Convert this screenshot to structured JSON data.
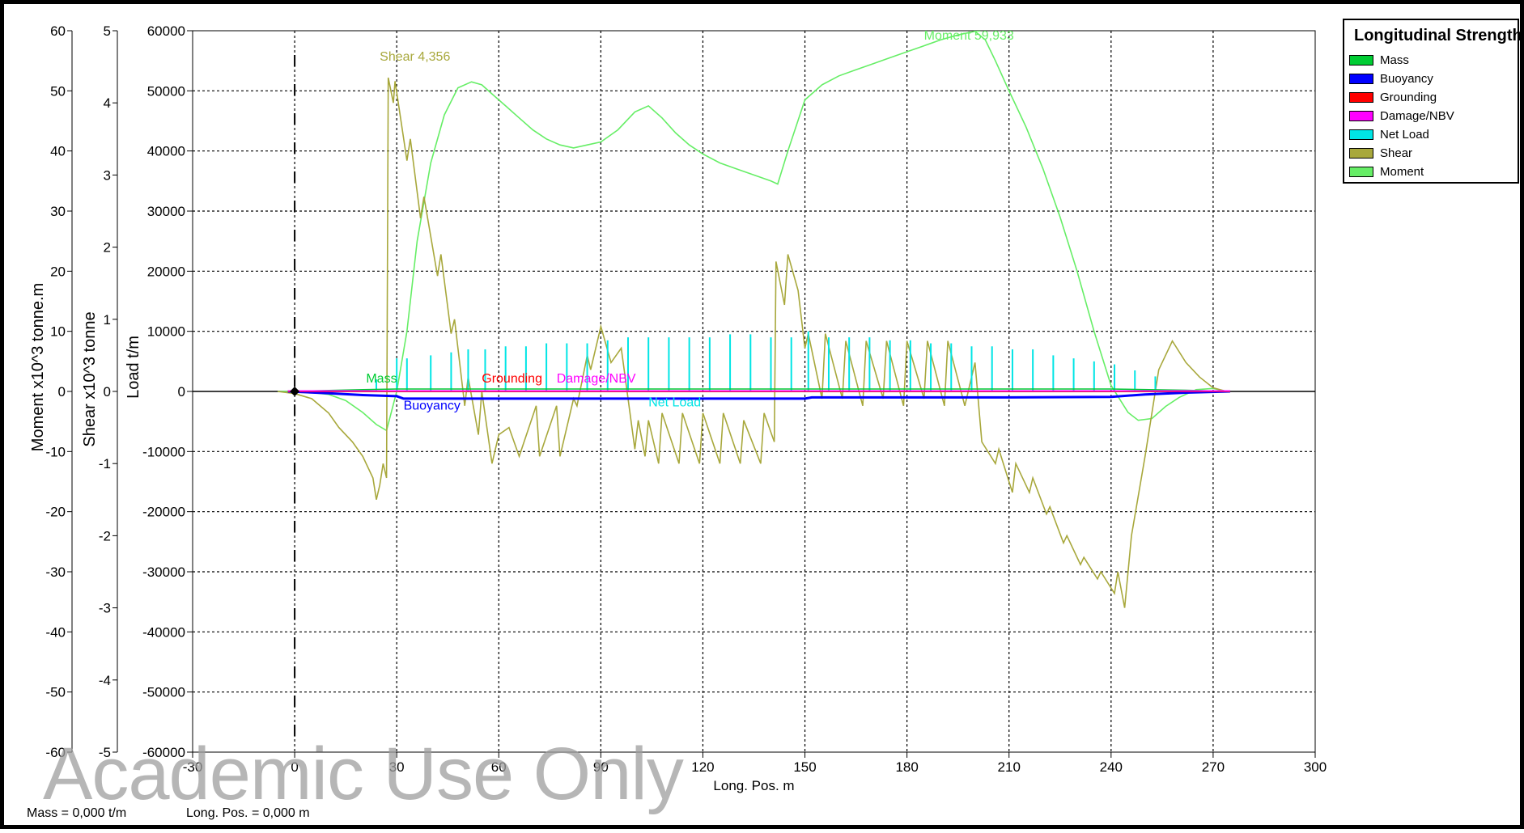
{
  "colors": {
    "mass": "#00cc33",
    "buoyancy": "#0000ff",
    "grounding": "#ff0000",
    "damage": "#ff00ff",
    "net_load": "#00e5e5",
    "shear": "#a8a83c",
    "moment": "#66ee66",
    "grid": "#000000"
  },
  "legend": {
    "title": "Longitudinal Strength",
    "items": [
      {
        "label": "Mass",
        "color": "#00cc33"
      },
      {
        "label": "Buoyancy",
        "color": "#0000ff"
      },
      {
        "label": "Grounding",
        "color": "#ff0000"
      },
      {
        "label": "Damage/NBV",
        "color": "#ff00ff"
      },
      {
        "label": "Net Load",
        "color": "#00e5e5"
      },
      {
        "label": "Shear",
        "color": "#a8a83c"
      },
      {
        "label": "Moment",
        "color": "#66ee66"
      }
    ]
  },
  "status": {
    "mass": "Mass =  0,000 t/m",
    "long_pos": "Long. Pos. =  0,000 m"
  },
  "watermark": "Academic Use Only",
  "chart_data": {
    "type": "line",
    "title": "",
    "xlabel": "Long. Pos.  m",
    "xlim": [
      -30,
      300
    ],
    "x_ticks": [
      "-30",
      "0",
      "30",
      "60",
      "90",
      "120",
      "150",
      "180",
      "210",
      "240",
      "270",
      "300"
    ],
    "y_axes": [
      {
        "label": "Load  t/m",
        "lim": [
          -60000,
          60000
        ],
        "ticks": [
          "60000",
          "50000",
          "40000",
          "30000",
          "20000",
          "10000",
          "0",
          "-10000",
          "-20000",
          "-30000",
          "-40000",
          "-50000",
          "-60000"
        ]
      },
      {
        "label": "Shear  x10^3 tonne",
        "lim": [
          -5,
          5
        ],
        "ticks": [
          "5",
          "4",
          "3",
          "2",
          "1",
          "0",
          "-1",
          "-2",
          "-3",
          "-4",
          "-5"
        ]
      },
      {
        "label": "Moment  x10^3 tonne.m",
        "lim": [
          -60,
          60
        ],
        "ticks": [
          "60",
          "50",
          "40",
          "30",
          "20",
          "10",
          "0",
          "-10",
          "-20",
          "-30",
          "-40",
          "-50",
          "-60"
        ]
      }
    ],
    "grid": true,
    "legend_position": "top-right",
    "annotations": [
      {
        "text": "Shear 4,356",
        "x": 25,
        "y": 55000,
        "color": "#a8a83c"
      },
      {
        "text": "Moment 59,933",
        "x": 185,
        "y": 58500,
        "color": "#66ee66"
      },
      {
        "text": "Mass",
        "x": 21,
        "y": 1500,
        "color": "#00cc33"
      },
      {
        "text": "Buoyancy",
        "x": 32,
        "y": -3000,
        "color": "#0000ff"
      },
      {
        "text": "Grounding",
        "x": 55,
        "y": 1500,
        "color": "#ff0000"
      },
      {
        "text": "Damage/NBV",
        "x": 77,
        "y": 1500,
        "color": "#ff00ff"
      },
      {
        "text": "Net Load",
        "x": 104,
        "y": -2500,
        "color": "#00e5e5"
      }
    ],
    "series": [
      {
        "name": "Moment",
        "unit": "x10^3 tonne.m",
        "x": [
          -5,
          0,
          5,
          10,
          15,
          20,
          24,
          27,
          30,
          33,
          36,
          40,
          44,
          48,
          52,
          55,
          58,
          62,
          66,
          70,
          74,
          78,
          82,
          86,
          90,
          95,
          100,
          104,
          108,
          112,
          116,
          120,
          125,
          130,
          135,
          140,
          142,
          145,
          150,
          155,
          160,
          165,
          170,
          175,
          180,
          185,
          190,
          195,
          200,
          203,
          206,
          210,
          215,
          220,
          225,
          230,
          235,
          240,
          245,
          248,
          252,
          256,
          260,
          265,
          270,
          274
        ],
        "y": [
          0,
          0,
          -0.2,
          -0.5,
          -1.5,
          -3.5,
          -5.5,
          -6.5,
          0,
          10,
          25,
          38,
          46,
          50.5,
          51.5,
          51,
          49.5,
          47.5,
          45.5,
          43.5,
          42,
          41,
          40.5,
          41,
          41.5,
          43.5,
          46.5,
          47.5,
          45.5,
          43,
          41,
          39.5,
          38,
          37,
          36,
          35,
          34.5,
          40,
          48.5,
          51,
          52.5,
          53.5,
          54.5,
          55.5,
          56.5,
          57.5,
          58.5,
          59.3,
          59.9,
          58.5,
          55,
          50,
          44,
          37,
          29,
          20,
          10,
          1,
          -3.5,
          -4.8,
          -4.5,
          -2.5,
          -1,
          0.3,
          0.5,
          0
        ]
      },
      {
        "name": "Shear",
        "unit": "x10^3 tonne",
        "x": [
          -5,
          0,
          5,
          10,
          13,
          17,
          20,
          23,
          24,
          25,
          26,
          27,
          27.5,
          29,
          29.5,
          33,
          34,
          37,
          38,
          42,
          43,
          46,
          47,
          50,
          51,
          54,
          55,
          58,
          60,
          63,
          66,
          71,
          72,
          77,
          78,
          82,
          83,
          86,
          87,
          90,
          93,
          96,
          100,
          101,
          103,
          104,
          107,
          108,
          113,
          114,
          119,
          120,
          125,
          126,
          131,
          132,
          137,
          138,
          141,
          141.5,
          144,
          145,
          148,
          150,
          151,
          155,
          156,
          161,
          162,
          167,
          168,
          173,
          174,
          179,
          180,
          185,
          186,
          191,
          192,
          197,
          200,
          202,
          206,
          207,
          211,
          212,
          216,
          217,
          221,
          222,
          226,
          227,
          231,
          232,
          236,
          237,
          241,
          242,
          244,
          246,
          250,
          254,
          258,
          262,
          266,
          270,
          274
        ],
        "y": [
          0,
          -0.03,
          -0.1,
          -0.3,
          -0.5,
          -0.7,
          -0.9,
          -1.2,
          -1.5,
          -1.3,
          -1.0,
          -1.2,
          4.35,
          4.0,
          4.3,
          3.2,
          3.5,
          2.4,
          2.7,
          1.6,
          1.9,
          0.8,
          1.0,
          -0.2,
          0.2,
          -0.6,
          0.0,
          -1.0,
          -0.6,
          -0.5,
          -0.9,
          -0.2,
          -0.9,
          -0.2,
          -0.9,
          -0.1,
          -0.2,
          0.5,
          0.3,
          0.9,
          0.4,
          0.6,
          -0.8,
          -0.4,
          -0.9,
          -0.4,
          -1.0,
          -0.3,
          -1.0,
          -0.3,
          -1.0,
          -0.3,
          -1.0,
          -0.3,
          -1.0,
          -0.4,
          -1.0,
          -0.3,
          -0.7,
          1.8,
          1.2,
          1.9,
          1.4,
          0.6,
          0.8,
          -0.1,
          0.8,
          -0.1,
          0.7,
          -0.2,
          0.7,
          -0.1,
          0.7,
          -0.2,
          0.7,
          -0.1,
          0.7,
          -0.2,
          0.7,
          -0.2,
          0.4,
          -0.7,
          -1.0,
          -0.8,
          -1.4,
          -1.0,
          -1.4,
          -1.2,
          -1.7,
          -1.6,
          -2.1,
          -2.0,
          -2.4,
          -2.3,
          -2.6,
          -2.5,
          -2.8,
          -2.5,
          -3.0,
          -2.0,
          -0.9,
          0.3,
          0.7,
          0.4,
          0.2,
          0.05,
          0
        ]
      },
      {
        "name": "Net Load",
        "unit": "t/m",
        "spikes_x": [
          24,
          30,
          33,
          40,
          46,
          51,
          56,
          62,
          68,
          74,
          80,
          86,
          92,
          98,
          104,
          110,
          116,
          122,
          128,
          134,
          140,
          146,
          151,
          157,
          163,
          169,
          175,
          181,
          187,
          193,
          199,
          205,
          211,
          217,
          223,
          229,
          235,
          241,
          247,
          253
        ],
        "spikes_y": [
          2000,
          5500,
          5500,
          6000,
          6500,
          7000,
          7000,
          7500,
          7500,
          8000,
          8000,
          8000,
          8500,
          9000,
          9000,
          9000,
          9000,
          9000,
          9500,
          9500,
          9000,
          9000,
          10000,
          9000,
          9000,
          9000,
          8500,
          8500,
          8000,
          8000,
          7500,
          7500,
          7000,
          7000,
          6000,
          5500,
          5000,
          4500,
          3500,
          2500
        ]
      },
      {
        "name": "Buoyancy",
        "unit": "t/m",
        "x": [
          -2,
          10,
          20,
          30,
          32,
          60,
          90,
          120,
          150,
          152,
          180,
          210,
          240,
          250,
          262,
          275
        ],
        "y": [
          0,
          -300,
          -600,
          -800,
          -1200,
          -1200,
          -1200,
          -1200,
          -1200,
          -1000,
          -1000,
          -1000,
          -900,
          -500,
          -200,
          0
        ]
      },
      {
        "name": "Mass",
        "unit": "t/m",
        "x": [
          -2,
          20,
          30,
          60,
          90,
          120,
          150,
          180,
          210,
          240,
          262,
          275
        ],
        "y": [
          0,
          300,
          400,
          400,
          400,
          400,
          400,
          400,
          400,
          400,
          200,
          0
        ]
      },
      {
        "name": "Grounding",
        "unit": "t/m",
        "x": [
          -2,
          275
        ],
        "y": [
          0,
          0
        ]
      },
      {
        "name": "Damage/NBV",
        "unit": "t/m",
        "x": [
          -2,
          275
        ],
        "y": [
          100,
          100
        ]
      }
    ]
  }
}
